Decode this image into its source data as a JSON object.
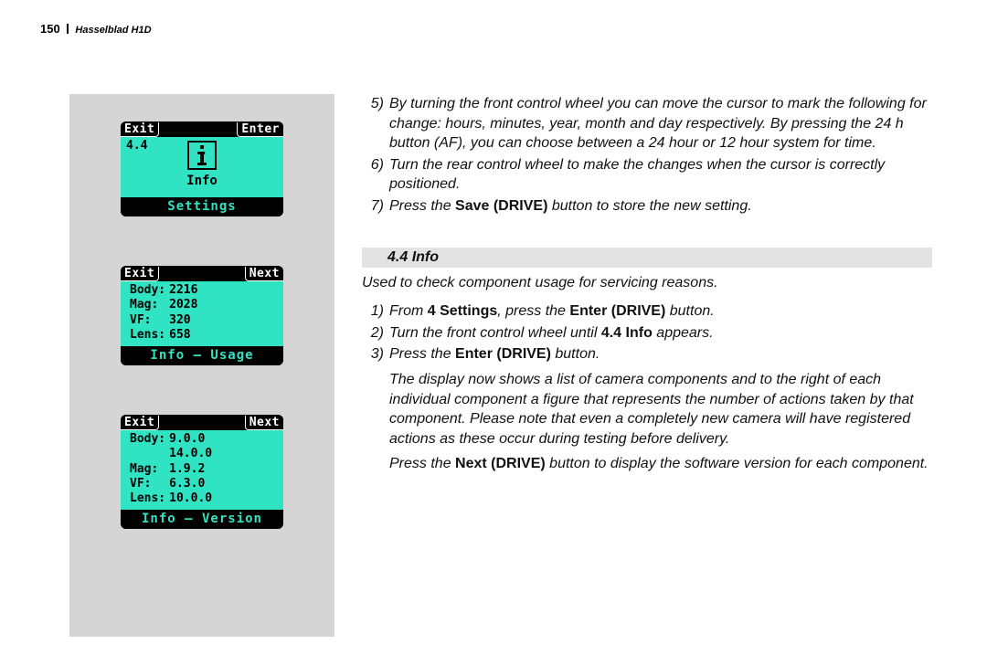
{
  "header": {
    "page_number": "150",
    "model": "Hasselblad H1D"
  },
  "colors": {
    "lcd_bg": "#2fe3c3",
    "lcd_frame": "#000000",
    "panel_gray": "#d5d5d5",
    "section_gray": "#e3e3e3"
  },
  "lcd1": {
    "left_btn": "Exit",
    "right_btn": "Enter",
    "corner": "4.4",
    "info_label": "Info",
    "footer": "Settings"
  },
  "lcd2": {
    "left_btn": "Exit",
    "right_btn": "Next",
    "rows": [
      {
        "k": "Body:",
        "v": "2216"
      },
      {
        "k": "Mag:",
        "v": "2028"
      },
      {
        "k": "VF:",
        "v": "320"
      },
      {
        "k": "Lens:",
        "v": "658"
      }
    ],
    "footer": "Info – Usage"
  },
  "lcd3": {
    "left_btn": "Exit",
    "right_btn": "Next",
    "rows": [
      {
        "k": "Body:",
        "v": "9.0.0"
      },
      {
        "k": "",
        "v": "14.0.0"
      },
      {
        "k": "Mag:",
        "v": "1.9.2"
      },
      {
        "k": "VF:",
        "v": "6.3.0"
      },
      {
        "k": "Lens:",
        "v": "10.0.0"
      }
    ],
    "footer": "Info – Version"
  },
  "steps_top": [
    {
      "n": "5)",
      "t": "By turning the front control wheel you can move the cursor to mark the following for change:  hours, minutes, year, month and day respectively. By pressing the 24 h button (AF), you can choose between a 24 hour or 12 hour system for time."
    },
    {
      "n": "6)",
      "t": "Turn the rear control wheel to make the changes when the cursor is correctly positioned."
    },
    {
      "n": "7)",
      "t": "Press the <b>Save (DRIVE)</b> button to store the new setting."
    }
  ],
  "section": {
    "title": "4.4 Info",
    "intro": "Used to check component usage for servicing reasons."
  },
  "steps_bottom": [
    {
      "n": "1)",
      "t": "From <b>4 Settings</b>, press the <b>Enter (DRIVE)</b> button."
    },
    {
      "n": "2)",
      "t": "Turn the front control wheel until <b>4.4 Info</b> appears."
    },
    {
      "n": "3)",
      "t": "Press the <b>Enter (DRIVE)</b> button."
    }
  ],
  "para1": "The display now shows a list of camera components and to the right of each individual component a figure that represents the number of actions taken by that component. Please note that even a completely new camera will have registered actions as these occur during testing before delivery.",
  "para2": "Press the <b>Next (DRIVE)</b> button to display the software version for each component."
}
